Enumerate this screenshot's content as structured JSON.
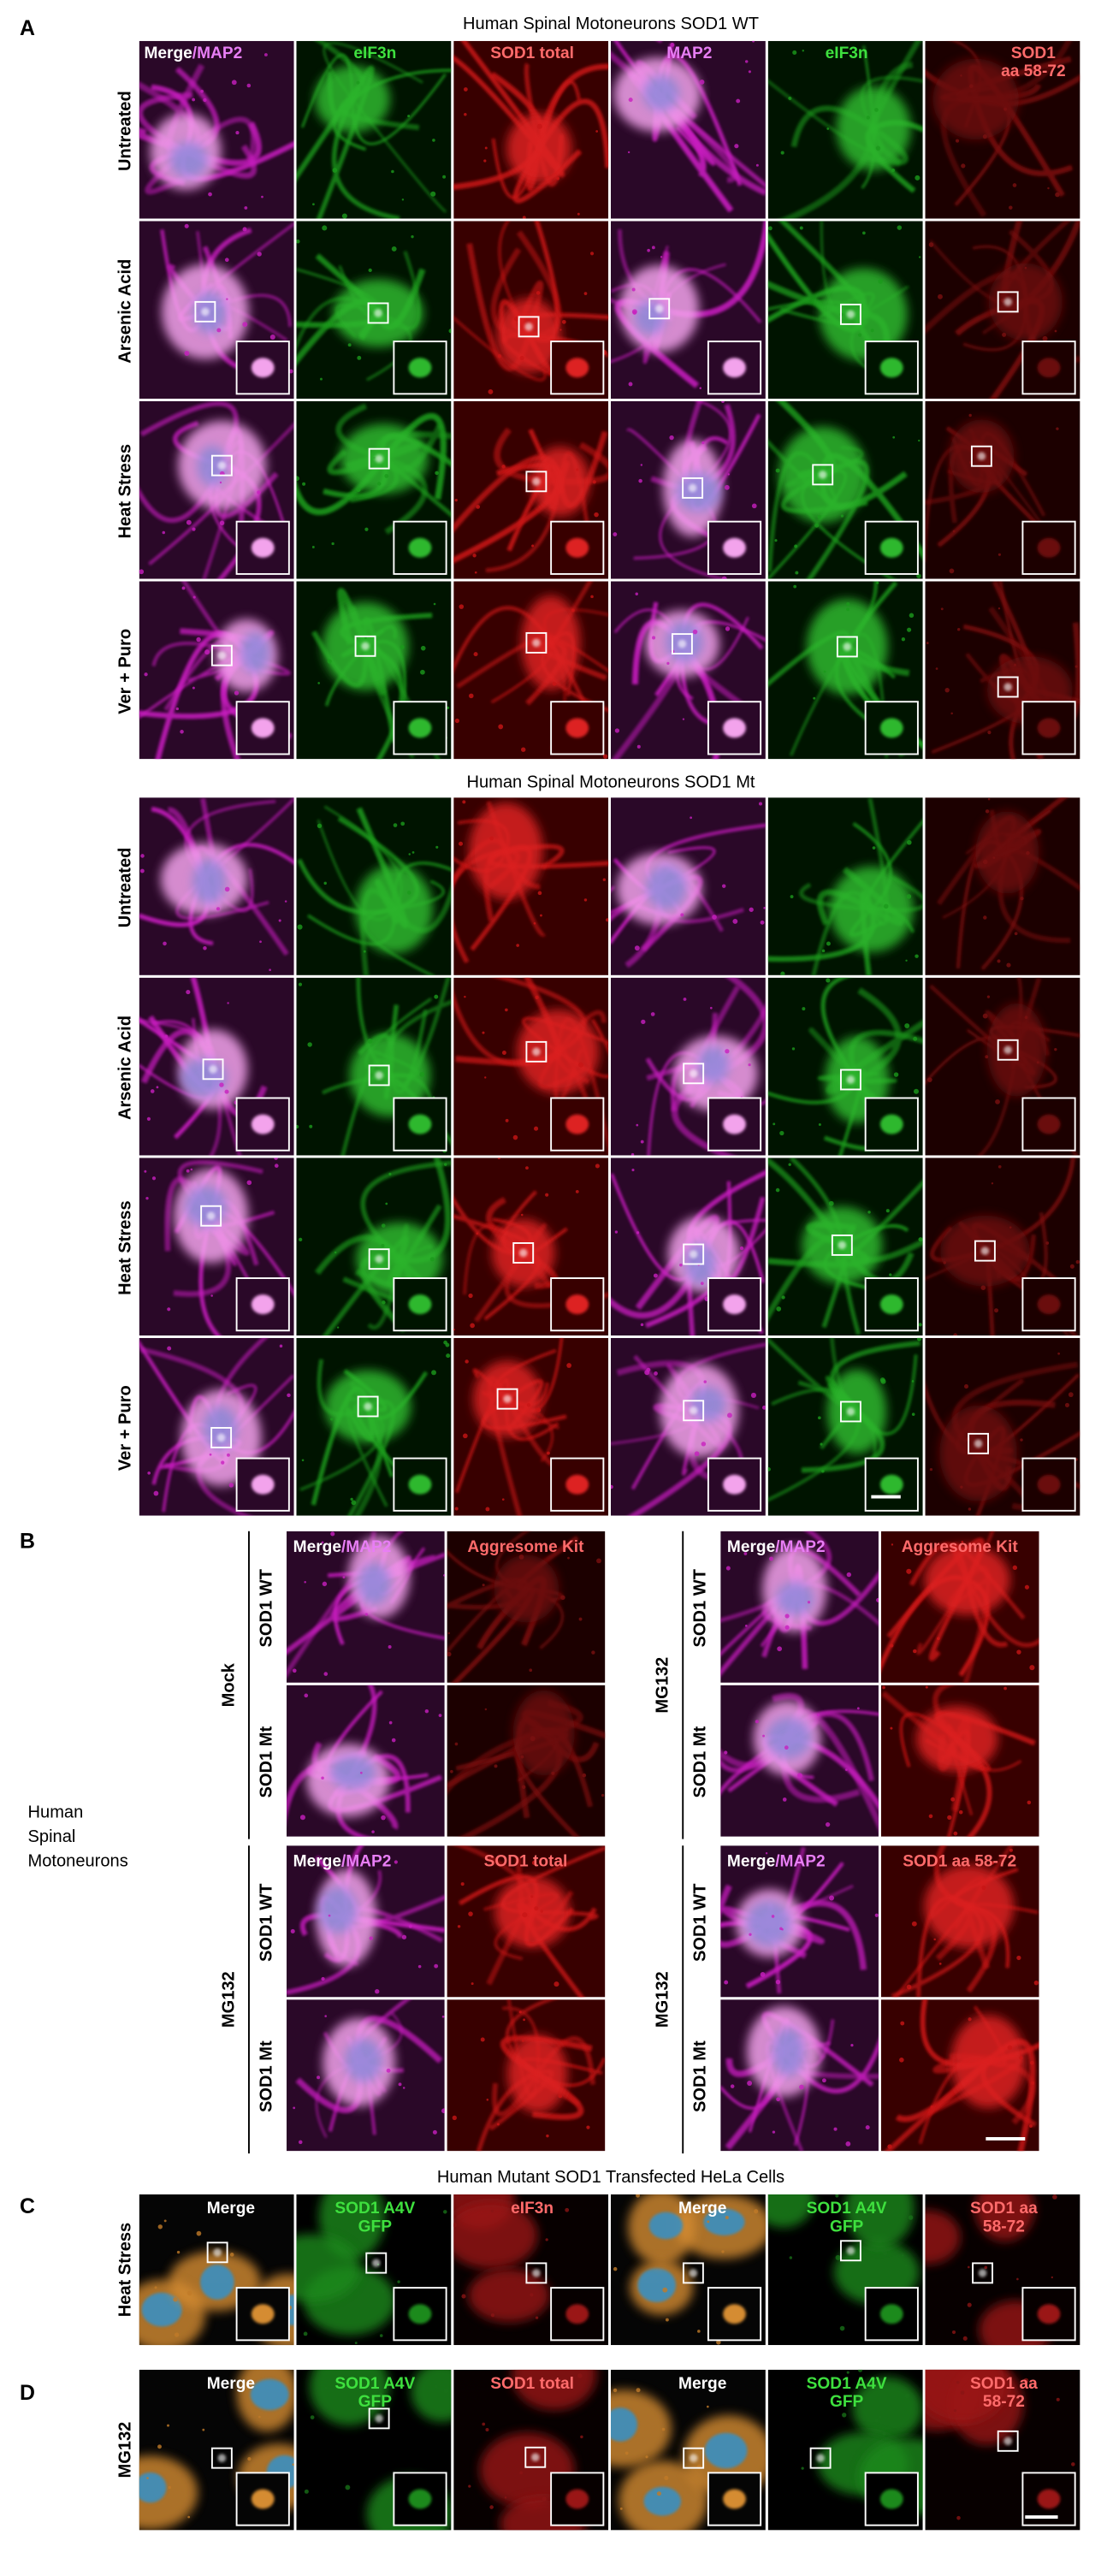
{
  "panel_a": {
    "label": "A",
    "sections": [
      {
        "title": "Human Spinal Motoneurons SOD1 WT",
        "rows": [
          "Untreated",
          "Arsenic Acid",
          "Heat Stress",
          "Ver + Puro"
        ]
      },
      {
        "title": "Human Spinal Motoneurons SOD1 Mt",
        "rows": [
          "Untreated",
          "Arsenic Acid",
          "Heat Stress",
          "Ver + Puro"
        ]
      }
    ],
    "columns": [
      [
        [
          {
            "text": "Merge",
            "color": "#ffffff"
          },
          {
            "text": "/MAP2",
            "color": "#e87ef5"
          }
        ]
      ],
      [
        [
          {
            "text": "eIF3n",
            "color": "#3ee03e"
          }
        ]
      ],
      [
        [
          {
            "text": "SOD1 total",
            "color": "#ff6b6b"
          }
        ]
      ],
      [
        [
          {
            "text": "MAP2",
            "color": "#e87ef5"
          }
        ]
      ],
      [
        [
          {
            "text": "eIF3n",
            "color": "#3ee03e"
          }
        ]
      ],
      [
        [
          {
            "text": "SOD1",
            "color": "#ff6b6b"
          }
        ],
        [
          {
            "text": "aa 58-72",
            "color": "#ff6b6b"
          }
        ]
      ]
    ]
  },
  "panel_b": {
    "label": "B",
    "side_label": [
      "Human",
      "Spinal",
      "Motoneurons"
    ],
    "blocks": [
      {
        "group": "Mock",
        "rows": [
          "SOD1 WT",
          "SOD1 Mt"
        ],
        "headers": [
          [
            [
              {
                "text": "Merge",
                "color": "#ffffff"
              },
              {
                "text": "/MAP2",
                "color": "#e87ef5"
              }
            ]
          ],
          [
            [
              {
                "text": "Aggresome Kit",
                "color": "#ff6b6b"
              }
            ]
          ]
        ]
      },
      {
        "group": "MG132",
        "rows": [
          "SOD1 WT",
          "SOD1 Mt"
        ],
        "headers": [
          [
            [
              {
                "text": "Merge",
                "color": "#ffffff"
              },
              {
                "text": "/MAP2",
                "color": "#e87ef5"
              }
            ]
          ],
          [
            [
              {
                "text": "Aggresome Kit",
                "color": "#ff6b6b"
              }
            ]
          ]
        ]
      },
      {
        "group": "MG132",
        "rows": [
          "SOD1 WT",
          "SOD1 Mt"
        ],
        "headers": [
          [
            [
              {
                "text": "Merge",
                "color": "#ffffff"
              },
              {
                "text": "/MAP2",
                "color": "#e87ef5"
              }
            ]
          ],
          [
            [
              {
                "text": "SOD1 total",
                "color": "#ff6b6b"
              }
            ]
          ]
        ]
      },
      {
        "group": "MG132",
        "rows": [
          "SOD1 WT",
          "SOD1 Mt"
        ],
        "headers": [
          [
            [
              {
                "text": "Merge",
                "color": "#ffffff"
              },
              {
                "text": "/MAP2",
                "color": "#e87ef5"
              }
            ]
          ],
          [
            [
              {
                "text": "SOD1 aa 58-72",
                "color": "#ff6b6b"
              }
            ]
          ]
        ]
      }
    ]
  },
  "panel_c": {
    "label": "C",
    "title": "Human Mutant SOD1 Transfected HeLa Cells",
    "row": "Heat Stress",
    "columns": [
      [
        [
          {
            "text": "Merge",
            "color": "#ffffff"
          }
        ]
      ],
      [
        [
          {
            "text": "SOD1 A4V",
            "color": "#3ee03e"
          }
        ],
        [
          {
            "text": "GFP",
            "color": "#3ee03e"
          }
        ]
      ],
      [
        [
          {
            "text": "eIF3n",
            "color": "#ff6b6b"
          }
        ]
      ],
      [
        [
          {
            "text": "Merge",
            "color": "#ffffff"
          }
        ]
      ],
      [
        [
          {
            "text": "SOD1 A4V",
            "color": "#3ee03e"
          }
        ],
        [
          {
            "text": "GFP",
            "color": "#3ee03e"
          }
        ]
      ],
      [
        [
          {
            "text": "SOD1 aa",
            "color": "#ff6b6b"
          }
        ],
        [
          {
            "text": "58-72",
            "color": "#ff6b6b"
          }
        ]
      ]
    ]
  },
  "panel_d": {
    "label": "D",
    "row": "MG132",
    "columns": [
      [
        [
          {
            "text": "Merge",
            "color": "#ffffff"
          }
        ]
      ],
      [
        [
          {
            "text": "SOD1 A4V",
            "color": "#3ee03e"
          }
        ],
        [
          {
            "text": "GFP",
            "color": "#3ee03e"
          }
        ]
      ],
      [
        [
          {
            "text": "SOD1 total",
            "color": "#ff6b6b"
          }
        ]
      ],
      [
        [
          {
            "text": "Merge",
            "color": "#ffffff"
          }
        ]
      ],
      [
        [
          {
            "text": "SOD1 A4V",
            "color": "#3ee03e"
          }
        ],
        [
          {
            "text": "GFP",
            "color": "#3ee03e"
          }
        ]
      ],
      [
        [
          {
            "text": "SOD1 aa",
            "color": "#ff6b6b"
          }
        ],
        [
          {
            "text": "58-72",
            "color": "#ff6b6b"
          }
        ]
      ]
    ]
  }
}
